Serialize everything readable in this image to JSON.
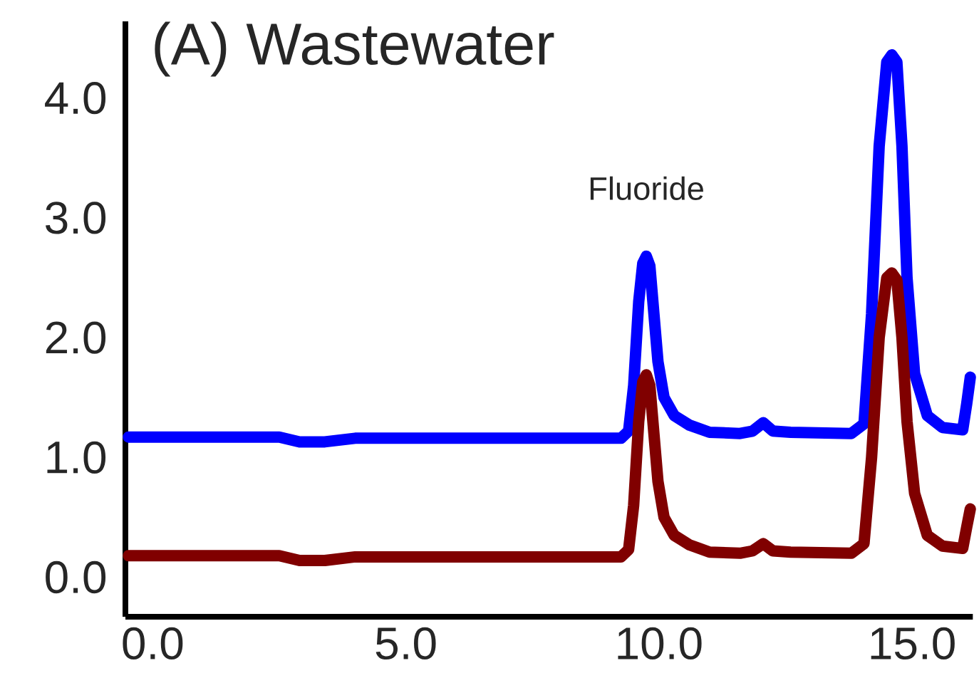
{
  "chart_data": {
    "type": "line",
    "title": "(A) Wastewater",
    "xlim": [
      -0.54,
      16.2
    ],
    "ylim": [
      -0.33,
      4.64
    ],
    "xticks": [
      {
        "value": 0,
        "label": "0.0"
      },
      {
        "value": 5,
        "label": "5.0"
      },
      {
        "value": 10,
        "label": "10.0"
      },
      {
        "value": 15,
        "label": "15.0"
      }
    ],
    "yticks": [
      {
        "value": 0,
        "label": "0.0"
      },
      {
        "value": 1,
        "label": "1.0"
      },
      {
        "value": 2,
        "label": "2.0"
      },
      {
        "value": 3,
        "label": "3.0"
      },
      {
        "value": 4,
        "label": "4.0"
      }
    ],
    "grid": false,
    "marker": "none",
    "line_style": "solid",
    "annotations": [
      {
        "text": "Fluoride",
        "x": 9.75,
        "y": 2.68
      }
    ],
    "series": [
      {
        "color": "#0000ff",
        "x": [
          -0.48,
          2.5,
          2.9,
          3.4,
          4.0,
          6.0,
          9.25,
          9.4,
          9.5,
          9.6,
          9.68,
          9.75,
          9.82,
          9.9,
          9.98,
          10.1,
          10.3,
          10.6,
          11.0,
          11.6,
          11.85,
          12.06,
          12.25,
          12.6,
          13.8,
          14.05,
          14.2,
          14.35,
          14.5,
          14.6,
          14.7,
          14.8,
          14.9,
          15.05,
          15.3,
          15.6,
          16.0,
          16.08,
          16.15
        ],
        "values": [
          1.17,
          1.17,
          1.13,
          1.13,
          1.16,
          1.16,
          1.16,
          1.22,
          1.6,
          2.3,
          2.62,
          2.68,
          2.6,
          2.2,
          1.8,
          1.5,
          1.35,
          1.27,
          1.21,
          1.2,
          1.22,
          1.29,
          1.22,
          1.21,
          1.2,
          1.28,
          2.2,
          3.6,
          4.3,
          4.36,
          4.3,
          3.6,
          2.5,
          1.7,
          1.35,
          1.25,
          1.23,
          1.45,
          1.67
        ]
      },
      {
        "color": "#800000",
        "x": [
          -0.48,
          2.5,
          2.9,
          3.4,
          4.0,
          6.0,
          9.25,
          9.4,
          9.5,
          9.6,
          9.68,
          9.75,
          9.82,
          9.9,
          9.98,
          10.1,
          10.3,
          10.6,
          11.0,
          11.6,
          11.85,
          12.06,
          12.25,
          12.6,
          13.8,
          14.05,
          14.2,
          14.35,
          14.5,
          14.6,
          14.7,
          14.8,
          14.9,
          15.05,
          15.3,
          15.6,
          16.0,
          16.08,
          16.15
        ],
        "values": [
          0.18,
          0.18,
          0.14,
          0.14,
          0.17,
          0.17,
          0.17,
          0.23,
          0.6,
          1.3,
          1.63,
          1.69,
          1.6,
          1.2,
          0.8,
          0.5,
          0.35,
          0.27,
          0.21,
          0.2,
          0.22,
          0.28,
          0.22,
          0.21,
          0.2,
          0.28,
          1.0,
          2.0,
          2.5,
          2.54,
          2.48,
          2.0,
          1.3,
          0.7,
          0.35,
          0.26,
          0.24,
          0.42,
          0.57
        ]
      }
    ]
  }
}
